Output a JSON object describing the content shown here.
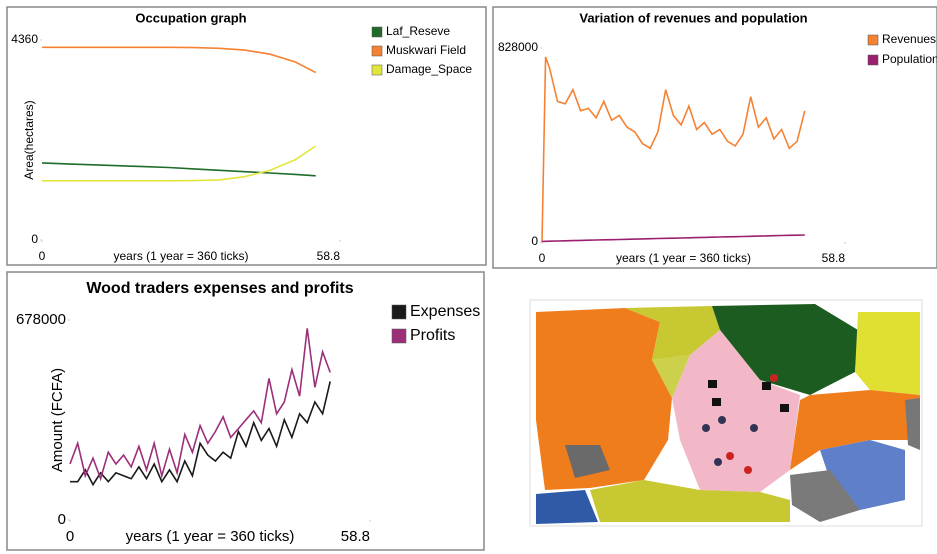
{
  "chart_data": [
    {
      "type": "line",
      "title": "Occupation graph",
      "x_label": "years (1 year = 360 ticks)",
      "y_label": "Area(hectares)",
      "x": [
        0,
        5,
        10,
        15,
        20,
        25,
        30,
        35,
        40,
        45,
        50,
        54
      ],
      "xlim": [
        0,
        58.8
      ],
      "xticks": [
        0,
        58.8
      ],
      "ylim": [
        0,
        4360
      ],
      "yticks": [
        0,
        4360
      ],
      "series": [
        {
          "name": "Laf_Reseve",
          "color": "#1e6b2a",
          "values": [
            1680,
            1660,
            1640,
            1620,
            1600,
            1580,
            1550,
            1520,
            1490,
            1460,
            1430,
            1400
          ]
        },
        {
          "name": "Muskwari Field",
          "color": "#f58233",
          "values": [
            4200,
            4200,
            4200,
            4200,
            4200,
            4200,
            4195,
            4180,
            4140,
            4050,
            3880,
            3650
          ]
        },
        {
          "name": "Damage_Space",
          "color": "#e0e63c",
          "values": [
            1290,
            1290,
            1290,
            1290,
            1290,
            1290,
            1295,
            1310,
            1380,
            1520,
            1750,
            2050
          ]
        }
      ]
    },
    {
      "type": "line",
      "title": "Variation of revenues and population",
      "x_label": "years (1 year = 360 ticks)",
      "x": [
        0,
        0.7,
        1.5,
        3,
        4.5,
        6,
        7.5,
        9,
        10.5,
        12,
        13.5,
        15,
        16.5,
        18,
        19.5,
        21,
        22.5,
        24,
        25.5,
        27,
        28.5,
        30,
        31.5,
        33,
        34.5,
        36,
        37.5,
        39,
        40.5,
        42,
        43.5,
        45,
        46.5,
        48,
        49.5,
        51
      ],
      "xlim": [
        0,
        58.8
      ],
      "xticks": [
        0,
        58.8
      ],
      "ylim": [
        0,
        828000
      ],
      "yticks": [
        0,
        828000
      ],
      "series": [
        {
          "name": "Revenues",
          "color": "#f58233",
          "values": [
            0,
            790000,
            740000,
            600000,
            590000,
            650000,
            560000,
            570000,
            530000,
            600000,
            520000,
            540000,
            490000,
            470000,
            420000,
            400000,
            470000,
            650000,
            540000,
            500000,
            580000,
            480000,
            510000,
            460000,
            480000,
            430000,
            410000,
            460000,
            620000,
            490000,
            530000,
            440000,
            480000,
            400000,
            430000,
            560000
          ]
        },
        {
          "name": "Population",
          "color": "#9c1f6e",
          "values": [
            2000,
            2800,
            3600,
            4400,
            5200,
            6000,
            6800,
            7600,
            8400,
            9200,
            10000,
            10800,
            11600,
            12400,
            13200,
            14000,
            14800,
            15600,
            16400,
            17200,
            18000,
            18800,
            19600,
            20400,
            21200,
            22000,
            22800,
            23600,
            24400,
            25200,
            26000,
            26800,
            27600,
            28400,
            29200,
            30000
          ]
        }
      ]
    },
    {
      "type": "line",
      "title": "Wood traders expenses and profits",
      "x_label": "years (1 year = 360 ticks)",
      "y_label": "Amount (FCFA)",
      "x": [
        0,
        1.5,
        3,
        4.5,
        6,
        7.5,
        9,
        10.5,
        12,
        13.5,
        15,
        16.5,
        18,
        19.5,
        21,
        22.5,
        24,
        25.5,
        27,
        28.5,
        30,
        31.5,
        33,
        34.5,
        36,
        37.5,
        39,
        40.5,
        42,
        43.5,
        45,
        46.5,
        48,
        49.5,
        51
      ],
      "xlim": [
        0,
        58.8
      ],
      "xticks": [
        0,
        58.8
      ],
      "ylim": [
        0,
        678000
      ],
      "yticks": [
        0,
        678000
      ],
      "series": [
        {
          "name": "Expenses",
          "color": "#1a1a1a",
          "values": [
            130000,
            130000,
            170000,
            120000,
            160000,
            130000,
            160000,
            150000,
            140000,
            180000,
            140000,
            190000,
            130000,
            170000,
            130000,
            200000,
            150000,
            260000,
            220000,
            200000,
            230000,
            210000,
            300000,
            250000,
            330000,
            270000,
            310000,
            250000,
            340000,
            280000,
            360000,
            330000,
            400000,
            360000,
            470000
          ]
        },
        {
          "name": "Profits",
          "color": "#9c2f7a",
          "values": [
            190000,
            260000,
            150000,
            210000,
            140000,
            230000,
            190000,
            220000,
            180000,
            250000,
            170000,
            260000,
            150000,
            240000,
            160000,
            290000,
            230000,
            320000,
            260000,
            300000,
            350000,
            280000,
            310000,
            340000,
            370000,
            330000,
            480000,
            360000,
            400000,
            510000,
            420000,
            650000,
            450000,
            570000,
            500000
          ]
        }
      ]
    }
  ]
}
